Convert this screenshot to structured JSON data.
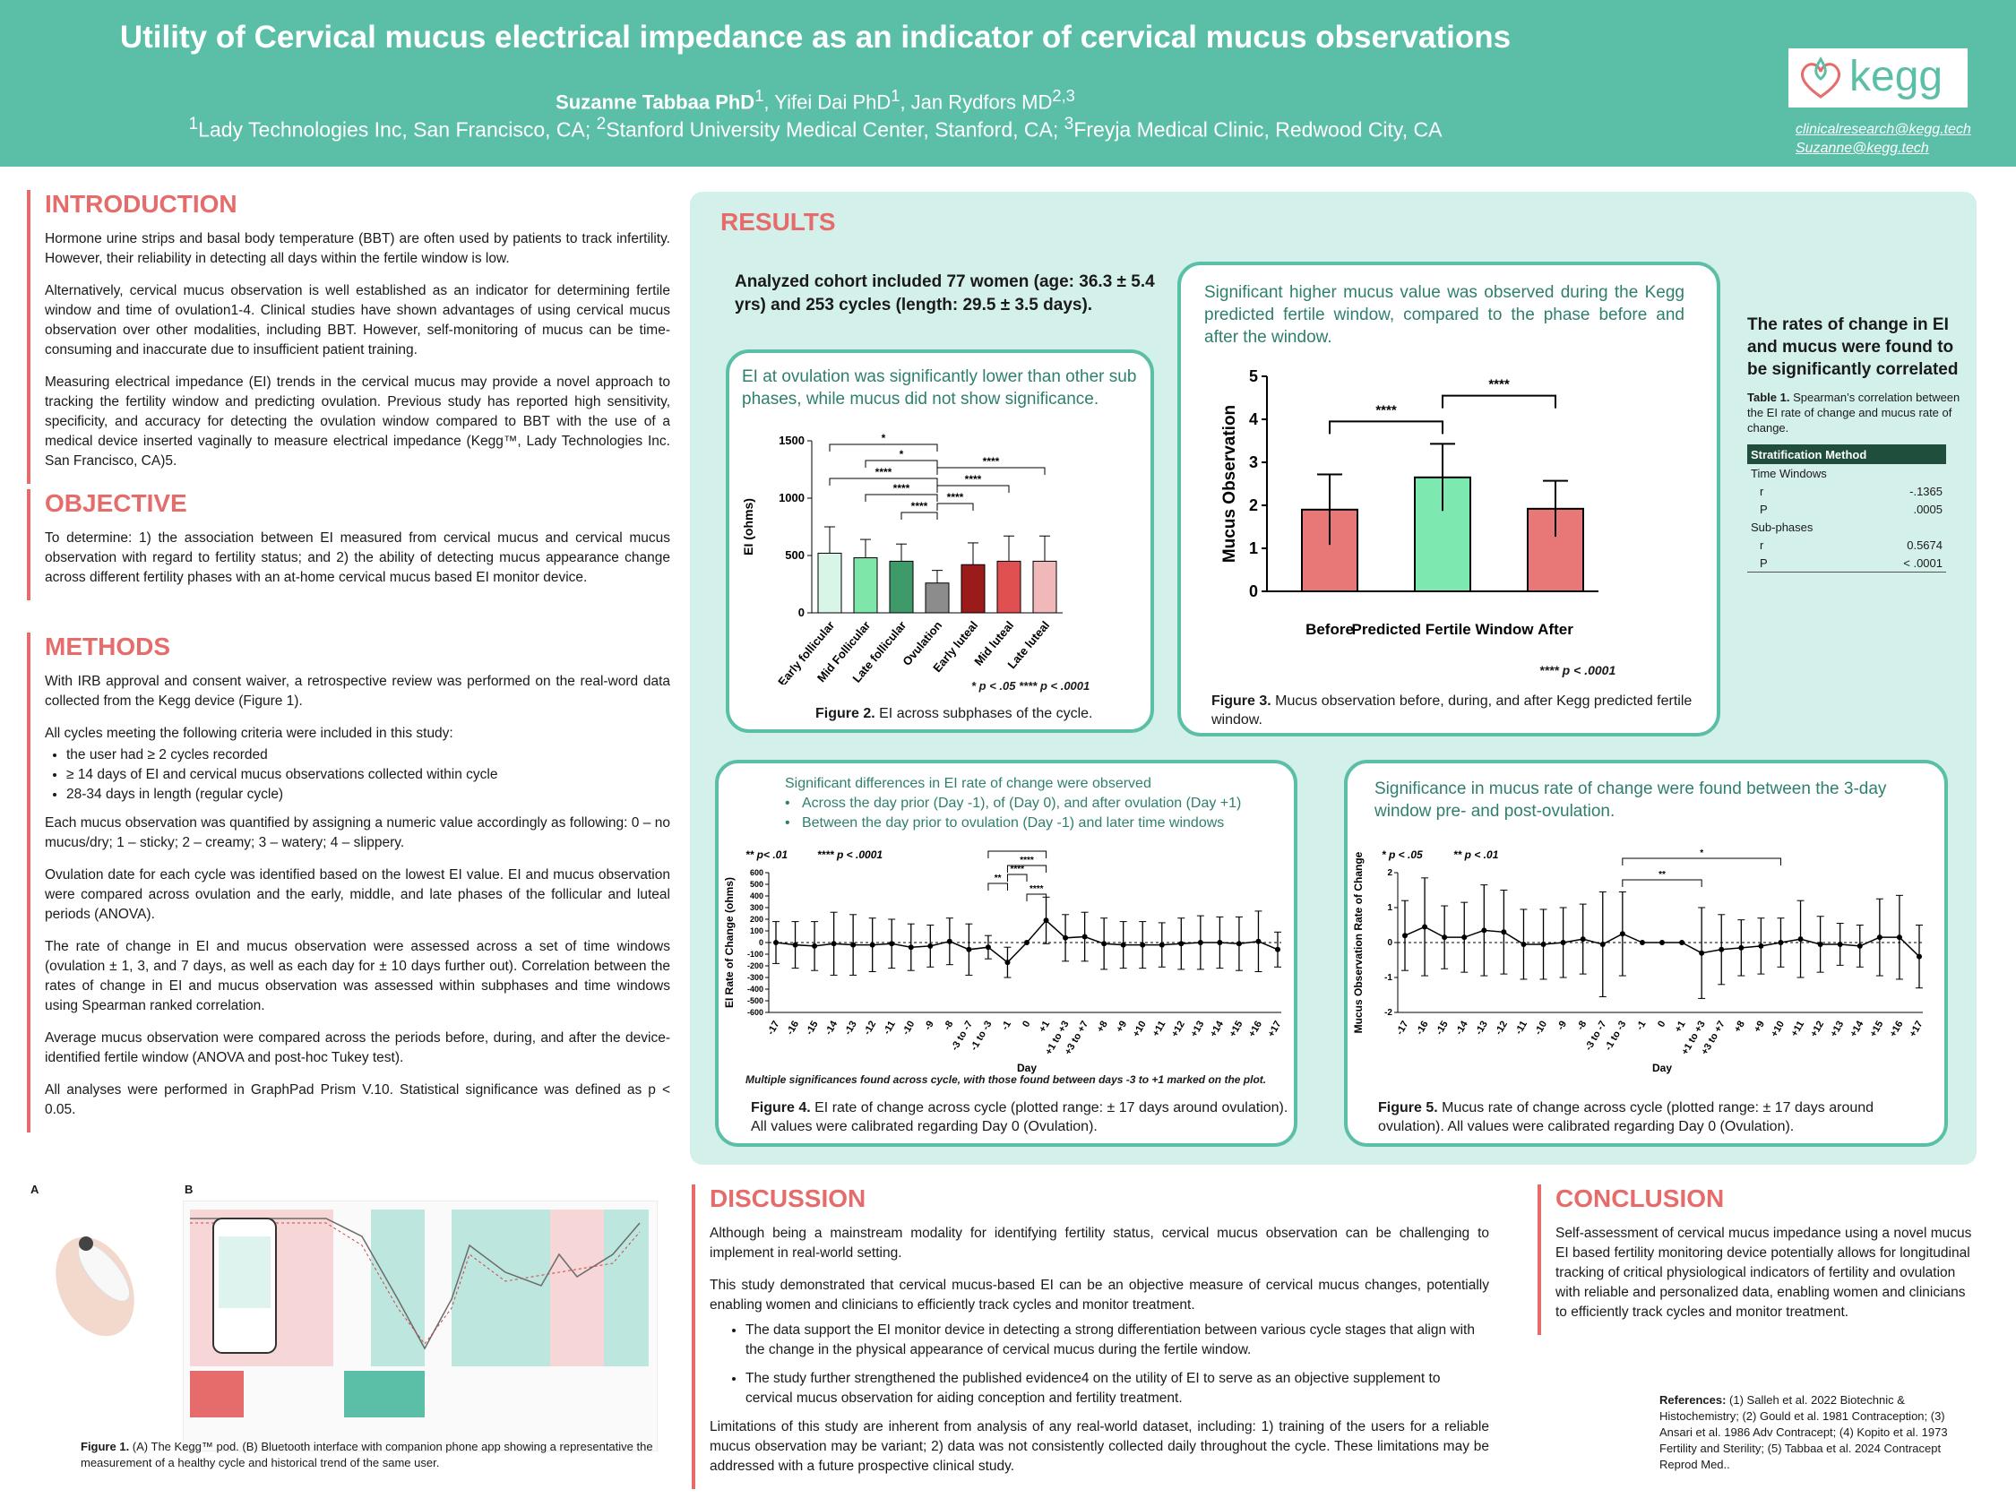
{
  "header": {
    "title": "Utility of Cervical mucus electrical impedance  as an indicator of cervical mucus observations",
    "authors_lead": "Suzanne Tabbaa PhD",
    "authors_rest": ", Yifei Dai PhD",
    "authors_rest2": ", Jan Rydfors MD",
    "affil_1": "Lady Technologies Inc, San Francisco, CA; ",
    "affil_2": "Stanford University Medical Center, Stanford, CA; ",
    "affil_3": "Freyja Medical Clinic, Redwood City, CA",
    "logo_text": "kegg",
    "email_1": "clinicalresearch@kegg.tech",
    "email_2": "Suzanne@kegg.tech"
  },
  "introduction": {
    "heading": "INTRODUCTION",
    "p1": "Hormone urine strips and basal body temperature (BBT) are often used by patients to track infertility. However, their reliability in detecting all days within the fertile window is low.",
    "p2": "Alternatively, cervical mucus observation is well established as an indicator for determining fertile window and time of ovulation1-4. Clinical studies have shown advantages of using cervical mucus observation over other modalities, including BBT. However, self-monitoring of mucus can be time-consuming and inaccurate due to insufficient patient training.",
    "p3": "Measuring electrical impedance (EI) trends in the cervical mucus may provide a novel approach to tracking the fertility window and predicting ovulation. Previous study has reported high sensitivity, specificity, and accuracy for detecting the ovulation window compared to BBT with the use of a medical device inserted vaginally to measure electrical impedance (Kegg™, Lady Technologies Inc. San Francisco, CA)5."
  },
  "objective": {
    "heading": "OBJECTIVE",
    "p1": "To determine: 1) the association between EI measured from cervical mucus and cervical mucus observation with regard to fertility status; and 2) the ability of detecting mucus appearance change across different fertility phases with an at-home cervical mucus based EI monitor device."
  },
  "methods": {
    "heading": "METHODS",
    "p1": "With IRB approval and consent waiver, a retrospective review was performed on the real-word data collected from the Kegg device (Figure 1).",
    "p2": "All cycles meeting the following criteria were included in this study:",
    "bullets": [
      "the user had ≥ 2 cycles recorded",
      "≥ 14 days of EI and cervical mucus observations collected within cycle",
      "28-34 days in length (regular cycle)"
    ],
    "p3": "Each mucus observation was quantified by assigning a numeric value accordingly as following: 0 – no mucus/dry; 1 – sticky; 2 – creamy; 3 – watery; 4 – slippery.",
    "p4": "Ovulation date for each cycle was identified based on the lowest EI value. EI and mucus observation were compared across ovulation and the early, middle, and late phases of the follicular and luteal periods (ANOVA).",
    "p5": "The rate of change in EI and mucus observation were assessed across a set of time windows (ovulation ± 1, 3, and 7 days, as well as each day for ± 10 days further out). Correlation between the rates of change in EI and mucus observation was assessed within subphases and time windows using Spearman ranked correlation.",
    "p6": "Average mucus observation were compared across the periods before, during, and after the device-identified fertile window (ANOVA and post-hoc Tukey test).",
    "p7": "All analyses were performed in GraphPad Prism V.10. Statistical significance was defined as p < 0.05."
  },
  "results": {
    "heading": "RESULTS",
    "cohort": "Analyzed cohort included 77 women (age: 36.3 ± 5.4 yrs) and 253 cycles (length: 29.5 ± 3.5 days).",
    "fig2_title": "EI at ovulation was significantly lower than other sub phases, while mucus did not show significance.",
    "fig2_cap_bold": "Figure 2.",
    "fig2_cap": " EI across subphases of the cycle.",
    "fig2_legend": "* p < .05    **** p < .0001",
    "fig3_title": "Significant higher mucus value was observed during the Kegg predicted fertile window, compared to the phase before and after the window.",
    "fig3_cap_bold": "Figure 3.",
    "fig3_cap": " Mucus observation before, during, and after Kegg predicted fertile window.",
    "fig3_legend": "**** p < .0001",
    "rate_title": "The rates of change in EI and mucus were found to be significantly correlated",
    "table_cap_bold": "Table 1.",
    "table_cap": " Spearman’s correlation between the EI rate of change and mucus rate of change.",
    "table": {
      "header": "Stratification Method",
      "g1": "Time Windows",
      "r_label": "r",
      "p_label": "P",
      "g1_r": "-.1365",
      "g1_p": ".0005",
      "g2": "Sub-phases",
      "g2_r": "0.5674",
      "g2_p": "< .0001"
    },
    "fig4_title": "Significant differences in EI rate of change were observed",
    "fig4_b1": "Across the day prior (Day -1), of (Day 0), and after ovulation (Day +1)",
    "fig4_b2": "Between the day prior to ovulation (Day -1) and later time windows",
    "fig4_legend_a": "** p< .01",
    "fig4_legend_b": "**** p < .0001",
    "fig4_note": "Multiple significances found across cycle, with those found between days -3 to +1 marked on the plot.",
    "fig4_cap_bold": "Figure 4.",
    "fig4_cap": " EI rate of change across cycle (plotted range: ± 17 days around ovulation). All values were calibrated regarding Day 0 (Ovulation).",
    "fig5_title": "Significance in mucus rate of change were found between the 3-day window pre- and post-ovulation.",
    "fig5_legend_a": "* p < .05",
    "fig5_legend_b": "** p < .01",
    "fig5_cap_bold": "Figure 5.",
    "fig5_cap": " Mucus rate of change across cycle (plotted range: ± 17 days around ovulation). All values were calibrated regarding Day 0 (Ovulation)."
  },
  "figure1": {
    "label_a": "A",
    "label_b": "B",
    "cap_bold": "Figure 1.",
    "cap": " (A) The Kegg™ pod. (B) Bluetooth interface with companion phone app showing a representative the measurement of a healthy cycle and historical trend of the same user."
  },
  "discussion": {
    "heading": "DISCUSSION",
    "p1": "Although being a mainstream modality for identifying fertility status, cervical mucus observation can be challenging to implement in real-world setting.",
    "p2": "This study demonstrated that cervical mucus-based EI can be an objective measure of cervical mucus changes, potentially enabling women and clinicians to efficiently track cycles and monitor treatment.",
    "b1": "The data support the EI monitor device in detecting a strong differentiation between various cycle stages that align with the change in the physical appearance of cervical mucus during the fertile window.",
    "b2": "The study further strengthened the published evidence4 on the utility of EI to serve as an objective supplement to cervical mucus observation for aiding conception and fertility treatment.",
    "p3": "Limitations of this study are inherent from analysis of any real-world dataset, including: 1) training of the users for a reliable mucus observation may be variant; 2) data was not consistently collected daily throughout the cycle. These limitations may be addressed with a future prospective clinical study."
  },
  "conclusion": {
    "heading": "CONCLUSION",
    "p1": "Self-assessment of cervical mucus impedance using a novel mucus EI based fertility monitoring device potentially allows for longitudinal tracking of critical physiological indicators of fertility and ovulation with reliable and personalized data, enabling women and clinicians to efficiently track cycles and monitor treatment."
  },
  "references": {
    "label": "References:",
    "text": " (1) Salleh et al. 2022 Biotechnic & Histochemistry; (2) Gould et al. 1981 Contraception; (3) Ansari et al. 1986 Adv Contracept; (4) Kopito et al. 1973 Fertility and Sterility; (5) Tabbaa et al. 2024 Contracept Reprod Med.."
  },
  "colors": {
    "brand": "#5bbfa8",
    "accent": "#e66c6c",
    "card_border": "#5bbfa8"
  },
  "chart_data": [
    {
      "type": "bar",
      "title": "",
      "ylabel": "EI (ohms)",
      "ylim": [
        0,
        1500
      ],
      "yticks": [
        0,
        500,
        1000,
        1500
      ],
      "categories": [
        "Early follicular",
        "Mid Follicular",
        "Late follicular",
        "Ovulation",
        "Early luteal",
        "Mid luteal",
        "Late luteal"
      ],
      "values": [
        520,
        480,
        450,
        260,
        420,
        450,
        450
      ],
      "errors": [
        230,
        160,
        150,
        110,
        190,
        220,
        220
      ],
      "colors": [
        "#d9f5e8",
        "#7fe6aa",
        "#3f9a6a",
        "#8c8c8c",
        "#9b1b1b",
        "#e05050",
        "#f0b8b8"
      ],
      "significance": [
        "*",
        "*",
        "****",
        "****",
        "****",
        "****",
        "****",
        "****"
      ]
    },
    {
      "type": "bar",
      "ylabel": "Mucus Observation",
      "ylim": [
        0,
        5
      ],
      "yticks": [
        0,
        1,
        2,
        3,
        4,
        5
      ],
      "categories": [
        "Before",
        "Predicted Fertile Window",
        "After"
      ],
      "values": [
        1.9,
        2.65,
        1.92
      ],
      "errors": [
        0.82,
        0.78,
        0.65
      ],
      "colors": [
        "#e87777",
        "#7de8b0",
        "#e87777"
      ],
      "significance": [
        "****",
        "****"
      ]
    },
    {
      "type": "line",
      "xlabel": "Day",
      "ylabel": "EI Rate of Change (ohms)",
      "ylim": [
        -600,
        600
      ],
      "yticks": [
        -600,
        -500,
        -400,
        -300,
        -200,
        -100,
        0,
        100,
        200,
        300,
        400,
        500,
        600
      ],
      "x": [
        "-17",
        "-16",
        "-15",
        "-14",
        "-13",
        "-12",
        "-11",
        "-10",
        "-9",
        "-8",
        "-3 to -7",
        "-1 to -3",
        "-1",
        "0",
        "+1",
        "+1 to +3",
        "+3 to +7",
        "+8",
        "+9",
        "+10",
        "+11",
        "+12",
        "+13",
        "+14",
        "+15",
        "+16",
        "+17"
      ],
      "values": [
        0,
        -20,
        -30,
        -10,
        -20,
        -20,
        -10,
        -40,
        -30,
        10,
        -60,
        -40,
        -170,
        0,
        190,
        40,
        50,
        -10,
        -20,
        -20,
        -20,
        -10,
        0,
        0,
        -10,
        10,
        -60
      ],
      "errors": [
        180,
        200,
        210,
        270,
        260,
        230,
        210,
        200,
        180,
        200,
        220,
        100,
        130,
        0,
        200,
        200,
        210,
        220,
        200,
        200,
        190,
        220,
        230,
        220,
        230,
        260,
        150
      ],
      "significance": [
        "****",
        "****",
        "**",
        "****",
        "****"
      ]
    },
    {
      "type": "line",
      "xlabel": "Day",
      "ylabel": "Mucus Observation Rate of Change",
      "ylim": [
        -2,
        2
      ],
      "yticks": [
        -2,
        -1,
        0,
        1,
        2
      ],
      "x": [
        "-17",
        "-16",
        "-15",
        "-14",
        "-13",
        "-12",
        "-11",
        "-10",
        "-9",
        "-8",
        "-3 to -7",
        "-1 to -3",
        "-1",
        "0",
        "+1",
        "+1 to +3",
        "+3 to +7",
        "+8",
        "+9",
        "+10",
        "+11",
        "+12",
        "+13",
        "+14",
        "+15",
        "+16",
        "+17"
      ],
      "values": [
        0.2,
        0.45,
        0.15,
        0.15,
        0.35,
        0.3,
        -0.05,
        -0.05,
        0.0,
        0.1,
        -0.05,
        0.25,
        0.0,
        0.0,
        0.0,
        -0.3,
        -0.2,
        -0.15,
        -0.1,
        0.0,
        0.1,
        -0.05,
        -0.05,
        -0.1,
        0.15,
        0.15,
        -0.4
      ],
      "errors": [
        1.0,
        1.4,
        0.9,
        1.0,
        1.3,
        1.2,
        1.0,
        1.0,
        1.0,
        1.0,
        1.5,
        1.2,
        0.0,
        0.0,
        0.0,
        1.3,
        1.0,
        0.8,
        0.8,
        0.7,
        1.1,
        0.8,
        0.6,
        0.6,
        1.1,
        1.2,
        0.9
      ],
      "significance": [
        "*",
        "**"
      ]
    }
  ]
}
